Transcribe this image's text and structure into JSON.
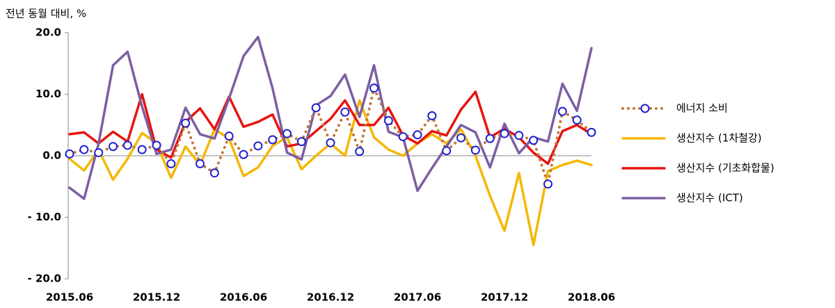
{
  "chart_data": {
    "type": "line",
    "y_axis_label": "전년 동월 대비, %",
    "categories": [
      "2015.06",
      null,
      null,
      null,
      null,
      null,
      "2015.12",
      null,
      null,
      null,
      null,
      null,
      "2016.06",
      null,
      null,
      null,
      null,
      null,
      "2016.12",
      null,
      null,
      null,
      null,
      null,
      "2017.06",
      null,
      null,
      null,
      null,
      null,
      "2017.12",
      null,
      null,
      null,
      null,
      null,
      "2018.06"
    ],
    "ylim": [
      -20,
      20
    ],
    "yticks": [
      {
        "value": 20,
        "label": "20.0"
      },
      {
        "value": 10,
        "label": "10.0"
      },
      {
        "value": 0,
        "label": "0.0"
      },
      {
        "value": -10,
        "label": "- 10.0"
      },
      {
        "value": -20,
        "label": "- 20.0"
      }
    ],
    "series": [
      {
        "name": "에너지 소비",
        "color": "#c0773a",
        "marker_color": "#1f1fd0",
        "style": "dotted-marker",
        "values": [
          0.3,
          1.0,
          0.5,
          1.5,
          1.7,
          1.0,
          1.7,
          -1.3,
          5.3,
          -1.3,
          -2.8,
          3.2,
          0.2,
          1.6,
          2.6,
          3.6,
          2.3,
          7.8,
          2.1,
          7.1,
          0.7,
          11.0,
          5.7,
          3.1,
          3.4,
          6.5,
          0.8,
          2.9,
          0.9,
          2.8,
          3.6,
          3.3,
          2.5,
          -4.6,
          7.2,
          5.8,
          3.8
        ]
      },
      {
        "name": "생산지수 (1차철강)",
        "color": "#f5b700",
        "style": "solid",
        "values": [
          -0.5,
          -2.4,
          1.0,
          -3.9,
          -0.5,
          3.7,
          2.0,
          -3.6,
          1.5,
          -1.5,
          4.3,
          2.8,
          -3.3,
          -1.9,
          1.6,
          3.0,
          -2.2,
          0,
          2.0,
          0,
          9.0,
          3.0,
          1.0,
          0,
          2.0,
          3.5,
          2.0,
          4.3,
          0,
          -6.5,
          -12.2,
          -2.8,
          -14.5,
          -2.5,
          -1.5,
          -0.8,
          -1.5
        ]
      },
      {
        "name": "생산지수 (기초화합물)",
        "color": "#e8130f",
        "style": "solid",
        "values": [
          3.5,
          3.8,
          2.0,
          3.9,
          2.3,
          10.0,
          1.0,
          -0.3,
          5.5,
          7.7,
          4.3,
          9.6,
          4.7,
          5.5,
          6.7,
          1.5,
          2.0,
          4.0,
          6.0,
          9.0,
          5.0,
          5.0,
          7.8,
          3.3,
          2.0,
          4.0,
          3.3,
          7.5,
          10.4,
          3.0,
          4.4,
          3.0,
          0.5,
          -1.3,
          4.0,
          5.0,
          3.5
        ]
      },
      {
        "name": "생산지수 (ICT)",
        "color": "#7b5ea3",
        "style": "solid",
        "values": [
          -5.2,
          -7.0,
          2.0,
          14.7,
          16.9,
          8.0,
          0.3,
          1.0,
          7.8,
          3.5,
          2.8,
          9.3,
          16.2,
          19.3,
          11.0,
          0.5,
          -0.6,
          8.2,
          9.7,
          13.2,
          6.3,
          14.7,
          3.9,
          3.0,
          -5.7,
          -2.0,
          1.5,
          5.0,
          3.8,
          -1.9,
          5.2,
          0.4,
          3.0,
          2.3,
          11.7,
          7.3,
          17.5
        ]
      }
    ]
  }
}
